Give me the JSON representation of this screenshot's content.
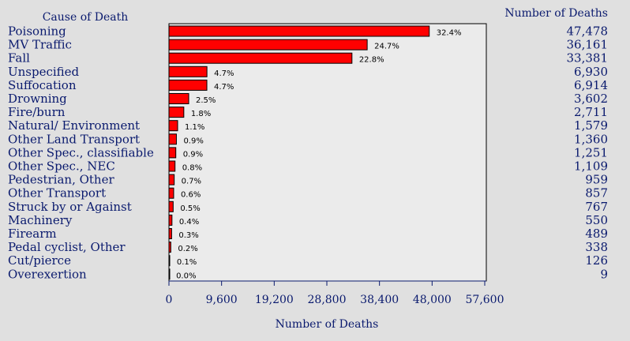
{
  "chart_data": {
    "type": "bar",
    "orientation": "horizontal",
    "category_header": "Cause of Death",
    "value_header": "Number of Deaths",
    "xlabel": "Number of Deaths",
    "xlim": [
      0,
      57600
    ],
    "x_ticks": [
      "0",
      "9,600",
      "19,200",
      "28,800",
      "38,400",
      "48,000",
      "57,600"
    ],
    "x_tick_values": [
      0,
      9600,
      19200,
      28800,
      38400,
      48000,
      57600
    ],
    "bar_color": "#ff0000",
    "plot_background": "#ebebeb",
    "grid": false,
    "categories": [
      "Poisoning",
      "MV Traffic",
      "Fall",
      "Unspecified",
      "Suffocation",
      "Drowning",
      "Fire/burn",
      "Natural/ Environment",
      "Other Land Transport",
      "Other Spec., classifiable",
      "Other Spec., NEC",
      "Pedestrian, Other",
      "Other Transport",
      "Struck by or Against",
      "Machinery",
      "Firearm",
      "Pedal cyclist, Other",
      "Cut/pierce",
      "Overexertion"
    ],
    "values": [
      47478,
      36161,
      33381,
      6930,
      6914,
      3602,
      2711,
      1579,
      1360,
      1251,
      1109,
      959,
      857,
      767,
      550,
      489,
      338,
      126,
      9
    ],
    "value_labels": [
      "47,478",
      "36,161",
      "33,381",
      "6,930",
      "6,914",
      "3,602",
      "2,711",
      "1,579",
      "1,360",
      "1,251",
      "1,109",
      "959",
      "857",
      "767",
      "550",
      "489",
      "338",
      "126",
      "9"
    ],
    "percent_labels": [
      "32.4%",
      "24.7%",
      "22.8%",
      "4.7%",
      "4.7%",
      "2.5%",
      "1.8%",
      "1.1%",
      "0.9%",
      "0.9%",
      "0.8%",
      "0.7%",
      "0.6%",
      "0.5%",
      "0.4%",
      "0.3%",
      "0.2%",
      "0.1%",
      "0.0%"
    ]
  }
}
